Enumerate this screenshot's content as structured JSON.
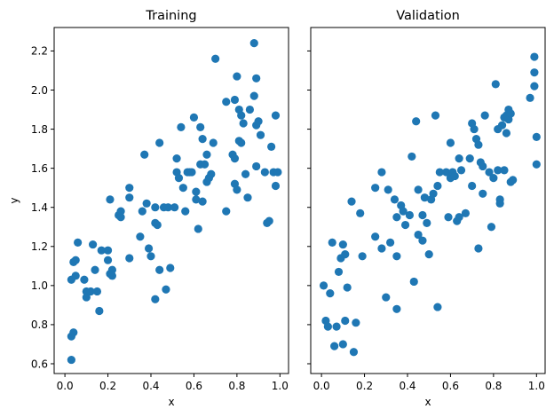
{
  "chart_data": [
    {
      "type": "scatter",
      "title": "Training",
      "xlabel": "x",
      "ylabel": "y",
      "xlim": [
        -0.05,
        1.04
      ],
      "ylim": [
        0.55,
        2.32
      ],
      "xticks": [
        0.0,
        0.2,
        0.4,
        0.6,
        0.8,
        1.0
      ],
      "xtick_labels": [
        "0.0",
        "0.2",
        "0.4",
        "0.6",
        "0.8",
        "1.0"
      ],
      "yticks": [
        0.6,
        0.8,
        1.0,
        1.2,
        1.4,
        1.6,
        1.8,
        2.0,
        2.2
      ],
      "ytick_labels": [
        "0.6",
        "0.8",
        "1.0",
        "1.2",
        "1.4",
        "1.6",
        "1.8",
        "2.0",
        "2.2"
      ],
      "grid": false,
      "color": "#1f77b4",
      "points": [
        [
          0.03,
          0.62
        ],
        [
          0.03,
          0.74
        ],
        [
          0.04,
          0.76
        ],
        [
          0.03,
          1.03
        ],
        [
          0.05,
          1.05
        ],
        [
          0.04,
          1.12
        ],
        [
          0.05,
          1.13
        ],
        [
          0.06,
          1.22
        ],
        [
          0.09,
          1.03
        ],
        [
          0.1,
          0.94
        ],
        [
          0.1,
          0.97
        ],
        [
          0.12,
          0.97
        ],
        [
          0.13,
          1.21
        ],
        [
          0.14,
          1.08
        ],
        [
          0.15,
          0.97
        ],
        [
          0.16,
          0.87
        ],
        [
          0.17,
          1.18
        ],
        [
          0.2,
          1.18
        ],
        [
          0.2,
          1.13
        ],
        [
          0.21,
          1.44
        ],
        [
          0.21,
          1.06
        ],
        [
          0.22,
          1.08
        ],
        [
          0.22,
          1.05
        ],
        [
          0.25,
          1.36
        ],
        [
          0.26,
          1.38
        ],
        [
          0.26,
          1.35
        ],
        [
          0.3,
          1.5
        ],
        [
          0.3,
          1.45
        ],
        [
          0.3,
          1.14
        ],
        [
          0.35,
          1.25
        ],
        [
          0.36,
          1.38
        ],
        [
          0.37,
          1.67
        ],
        [
          0.38,
          1.42
        ],
        [
          0.39,
          1.19
        ],
        [
          0.4,
          1.15
        ],
        [
          0.42,
          1.4
        ],
        [
          0.42,
          1.32
        ],
        [
          0.43,
          1.31
        ],
        [
          0.42,
          0.93
        ],
        [
          0.44,
          1.08
        ],
        [
          0.44,
          1.73
        ],
        [
          0.46,
          1.4
        ],
        [
          0.47,
          0.98
        ],
        [
          0.48,
          1.4
        ],
        [
          0.49,
          1.09
        ],
        [
          0.51,
          1.4
        ],
        [
          0.52,
          1.58
        ],
        [
          0.52,
          1.65
        ],
        [
          0.53,
          1.55
        ],
        [
          0.54,
          1.81
        ],
        [
          0.55,
          1.5
        ],
        [
          0.56,
          1.38
        ],
        [
          0.57,
          1.58
        ],
        [
          0.58,
          1.58
        ],
        [
          0.59,
          1.58
        ],
        [
          0.6,
          1.86
        ],
        [
          0.61,
          1.48
        ],
        [
          0.62,
          1.29
        ],
        [
          0.61,
          1.44
        ],
        [
          0.63,
          1.81
        ],
        [
          0.63,
          1.62
        ],
        [
          0.64,
          1.75
        ],
        [
          0.64,
          1.43
        ],
        [
          0.65,
          1.62
        ],
        [
          0.66,
          1.67
        ],
        [
          0.66,
          1.53
        ],
        [
          0.67,
          1.55
        ],
        [
          0.68,
          1.57
        ],
        [
          0.69,
          1.73
        ],
        [
          0.7,
          2.16
        ],
        [
          0.75,
          1.94
        ],
        [
          0.75,
          1.38
        ],
        [
          0.78,
          1.67
        ],
        [
          0.79,
          1.65
        ],
        [
          0.79,
          1.95
        ],
        [
          0.79,
          1.52
        ],
        [
          0.8,
          2.07
        ],
        [
          0.8,
          1.49
        ],
        [
          0.81,
          1.74
        ],
        [
          0.81,
          1.9
        ],
        [
          0.82,
          1.87
        ],
        [
          0.82,
          1.73
        ],
        [
          0.83,
          1.83
        ],
        [
          0.84,
          1.57
        ],
        [
          0.85,
          1.45
        ],
        [
          0.86,
          1.9
        ],
        [
          0.88,
          2.24
        ],
        [
          0.88,
          1.97
        ],
        [
          0.89,
          1.82
        ],
        [
          0.89,
          1.61
        ],
        [
          0.89,
          2.06
        ],
        [
          0.9,
          1.84
        ],
        [
          0.91,
          1.77
        ],
        [
          0.93,
          1.58
        ],
        [
          0.94,
          1.32
        ],
        [
          0.95,
          1.33
        ],
        [
          0.96,
          1.71
        ],
        [
          0.97,
          1.58
        ],
        [
          0.98,
          1.51
        ],
        [
          0.98,
          1.87
        ],
        [
          0.99,
          1.58
        ]
      ]
    },
    {
      "type": "scatter",
      "title": "Validation",
      "xlabel": "x",
      "ylabel": "",
      "xlim": [
        -0.05,
        1.04
      ],
      "ylim": [
        0.55,
        2.32
      ],
      "xticks": [
        0.0,
        0.2,
        0.4,
        0.6,
        0.8,
        1.0
      ],
      "xtick_labels": [
        "0.0",
        "0.2",
        "0.4",
        "0.6",
        "0.8",
        "1.0"
      ],
      "yticks": [
        0.6,
        0.8,
        1.0,
        1.2,
        1.4,
        1.6,
        1.8,
        2.0,
        2.2
      ],
      "ytick_labels": [],
      "shared_y": true,
      "grid": false,
      "color": "#1f77b4",
      "points": [
        [
          0.01,
          1.0
        ],
        [
          0.02,
          0.82
        ],
        [
          0.03,
          0.79
        ],
        [
          0.04,
          0.96
        ],
        [
          0.05,
          1.22
        ],
        [
          0.06,
          0.69
        ],
        [
          0.07,
          0.79
        ],
        [
          0.08,
          1.07
        ],
        [
          0.09,
          1.14
        ],
        [
          0.1,
          0.7
        ],
        [
          0.1,
          1.21
        ],
        [
          0.11,
          0.82
        ],
        [
          0.11,
          1.16
        ],
        [
          0.12,
          0.99
        ],
        [
          0.14,
          1.43
        ],
        [
          0.15,
          0.66
        ],
        [
          0.16,
          0.81
        ],
        [
          0.18,
          1.37
        ],
        [
          0.19,
          1.15
        ],
        [
          0.25,
          1.5
        ],
        [
          0.25,
          1.25
        ],
        [
          0.28,
          1.58
        ],
        [
          0.28,
          1.19
        ],
        [
          0.3,
          0.94
        ],
        [
          0.31,
          1.49
        ],
        [
          0.32,
          1.22
        ],
        [
          0.34,
          1.44
        ],
        [
          0.35,
          1.35
        ],
        [
          0.35,
          1.15
        ],
        [
          0.35,
          0.88
        ],
        [
          0.37,
          1.41
        ],
        [
          0.38,
          1.38
        ],
        [
          0.39,
          1.31
        ],
        [
          0.41,
          1.36
        ],
        [
          0.42,
          1.66
        ],
        [
          0.43,
          1.02
        ],
        [
          0.44,
          1.84
        ],
        [
          0.45,
          1.49
        ],
        [
          0.45,
          1.26
        ],
        [
          0.47,
          1.36
        ],
        [
          0.47,
          1.23
        ],
        [
          0.48,
          1.45
        ],
        [
          0.49,
          1.32
        ],
        [
          0.5,
          1.16
        ],
        [
          0.51,
          1.44
        ],
        [
          0.52,
          1.47
        ],
        [
          0.53,
          1.87
        ],
        [
          0.54,
          0.89
        ],
        [
          0.54,
          1.51
        ],
        [
          0.55,
          1.58
        ],
        [
          0.58,
          1.58
        ],
        [
          0.59,
          1.35
        ],
        [
          0.6,
          1.73
        ],
        [
          0.6,
          1.55
        ],
        [
          0.61,
          1.58
        ],
        [
          0.62,
          1.56
        ],
        [
          0.63,
          1.33
        ],
        [
          0.64,
          1.65
        ],
        [
          0.64,
          1.35
        ],
        [
          0.65,
          1.59
        ],
        [
          0.67,
          1.37
        ],
        [
          0.69,
          1.65
        ],
        [
          0.7,
          1.51
        ],
        [
          0.7,
          1.83
        ],
        [
          0.71,
          1.8
        ],
        [
          0.72,
          1.75
        ],
        [
          0.73,
          1.72
        ],
        [
          0.73,
          1.19
        ],
        [
          0.74,
          1.63
        ],
        [
          0.75,
          1.47
        ],
        [
          0.75,
          1.61
        ],
        [
          0.76,
          1.87
        ],
        [
          0.78,
          1.58
        ],
        [
          0.79,
          1.3
        ],
        [
          0.8,
          1.55
        ],
        [
          0.81,
          2.03
        ],
        [
          0.82,
          1.8
        ],
        [
          0.82,
          1.59
        ],
        [
          0.83,
          1.44
        ],
        [
          0.83,
          1.42
        ],
        [
          0.84,
          1.82
        ],
        [
          0.85,
          1.86
        ],
        [
          0.85,
          1.59
        ],
        [
          0.86,
          1.87
        ],
        [
          0.86,
          1.78
        ],
        [
          0.87,
          1.85
        ],
        [
          0.87,
          1.9
        ],
        [
          0.88,
          1.88
        ],
        [
          0.88,
          1.53
        ],
        [
          0.89,
          1.54
        ],
        [
          0.97,
          1.96
        ],
        [
          0.99,
          2.17
        ],
        [
          0.99,
          2.09
        ],
        [
          0.99,
          2.02
        ],
        [
          1.0,
          1.76
        ],
        [
          1.0,
          1.62
        ]
      ]
    }
  ]
}
